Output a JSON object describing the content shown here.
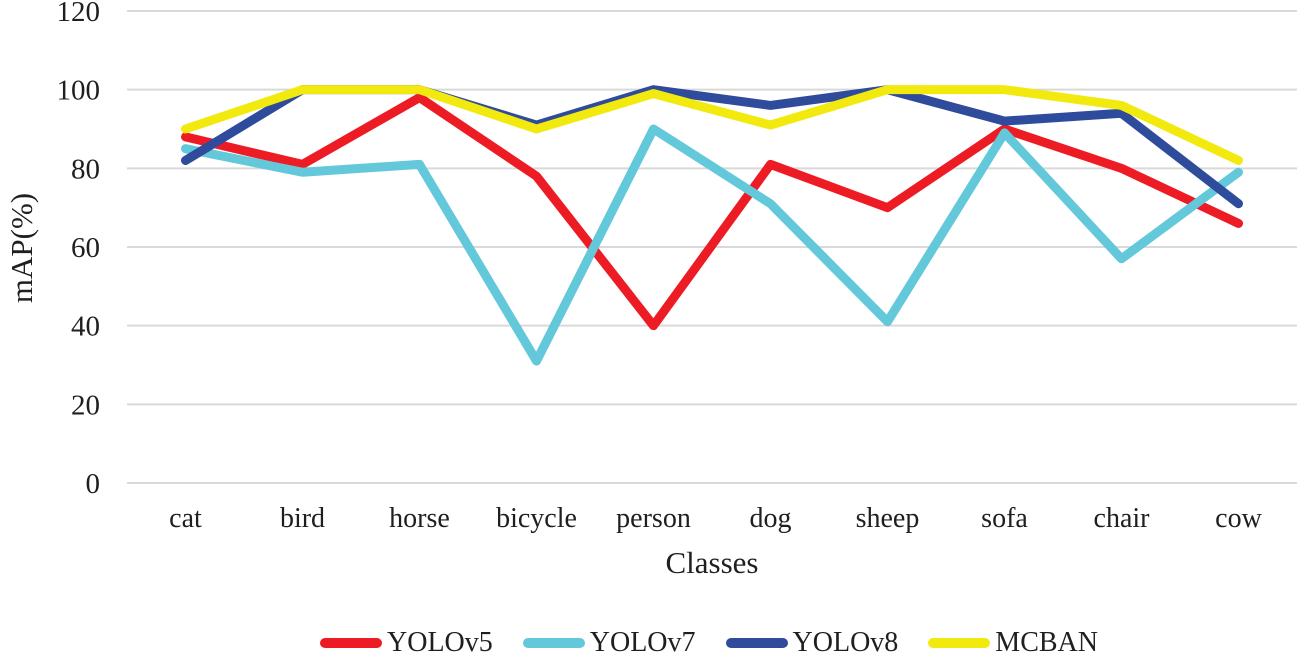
{
  "chart_data": {
    "type": "line",
    "title": "",
    "xlabel": "Classes",
    "ylabel": "mAP(%)",
    "ylim": [
      0,
      120
    ],
    "yticks": [
      0,
      20,
      40,
      60,
      80,
      100,
      120
    ],
    "grid": true,
    "legend_position": "bottom",
    "categories": [
      "cat",
      "bird",
      "horse",
      "bicycle",
      "person",
      "dog",
      "sheep",
      "sofa",
      "chair",
      "cow"
    ],
    "series": [
      {
        "name": "YOLOv5",
        "color": "#ed1c24",
        "values": [
          88,
          81,
          98,
          78,
          40,
          81,
          70,
          90,
          80,
          66
        ]
      },
      {
        "name": "YOLOv7",
        "color": "#63c8da",
        "values": [
          85,
          79,
          81,
          31,
          90,
          71,
          41,
          89,
          57,
          79
        ]
      },
      {
        "name": "YOLOv8",
        "color": "#2e4b9c",
        "values": [
          82,
          100,
          100,
          91,
          100,
          96,
          100,
          92,
          94,
          71
        ]
      },
      {
        "name": "MCBAN",
        "color": "#f2e90f",
        "values": [
          90,
          100,
          100,
          90,
          99,
          91,
          100,
          100,
          96,
          82
        ]
      }
    ],
    "style": {
      "grid_color": "#d9d9d9",
      "text_color": "#1f1f1f",
      "line_width": 9
    }
  }
}
